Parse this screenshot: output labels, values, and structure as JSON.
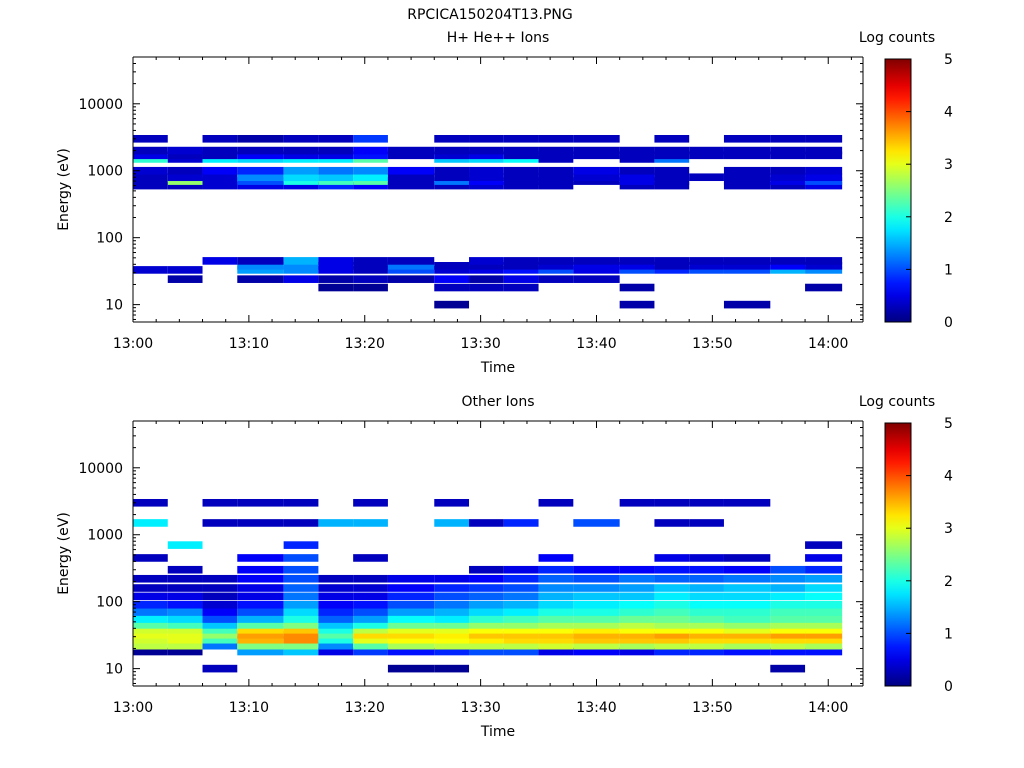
{
  "figure_title": "RPCICA150204T13.PNG",
  "chart_data": [
    {
      "type": "heatmap",
      "title": "H+ He++ Ions",
      "xlabel": "Time",
      "ylabel": "Energy (eV)",
      "x_ticks": [
        "13:00",
        "13:10",
        "13:20",
        "13:30",
        "13:40",
        "13:50",
        "14:00"
      ],
      "x_range": [
        "13:00",
        "14:03"
      ],
      "y_scale": "log",
      "y_ticks": [
        10,
        100,
        1000,
        10000
      ],
      "y_range": [
        5.5,
        50000
      ],
      "colorbar": {
        "label": "Log counts",
        "ticks": [
          0,
          1,
          2,
          3,
          4,
          5
        ],
        "range": [
          0,
          5
        ],
        "colormap": "jet"
      },
      "time_bins_start": [
        "13:00",
        "13:03",
        "13:06",
        "13:09",
        "13:13",
        "13:16",
        "13:19",
        "13:22",
        "13:26",
        "13:29",
        "13:32",
        "13:35",
        "13:38",
        "13:42",
        "13:45",
        "13:48",
        "13:51",
        "13:55",
        "13:58"
      ],
      "energy_bands_ev": [
        10,
        18,
        24,
        33,
        38,
        45,
        600,
        700,
        800,
        1000,
        1500,
        1700,
        2000,
        3000
      ],
      "values": [
        [
          null,
          null,
          null,
          0.4,
          null,
          null,
          0.3,
          0.3,
          0.3,
          0.4,
          2.1,
          0.5,
          0.3,
          0.3
        ],
        [
          null,
          null,
          0.2,
          0.4,
          null,
          null,
          0.3,
          2.6,
          0.4,
          0.3,
          0.4,
          0.3,
          0.4,
          null
        ],
        [
          null,
          null,
          null,
          null,
          null,
          0.5,
          0.4,
          0.4,
          0.4,
          0.6,
          1.8,
          0.3,
          0.3,
          0.3
        ],
        [
          null,
          null,
          0.2,
          1.4,
          1.3,
          0.3,
          0.5,
          1.0,
          1.3,
          0.8,
          1.7,
          0.6,
          0.3,
          0.2
        ],
        [
          null,
          null,
          0.5,
          1.3,
          1.3,
          1.5,
          0.5,
          2.0,
          1.7,
          1.4,
          1.8,
          0.5,
          0.3,
          0.3
        ],
        [
          null,
          0.1,
          0.2,
          0.5,
          0.5,
          0.5,
          0.8,
          2.2,
          1.6,
          1.2,
          1.8,
          0.5,
          0.3,
          0.3
        ],
        [
          null,
          0.1,
          0.3,
          0.3,
          0.3,
          0.3,
          0.6,
          2.3,
          1.8,
          1.3,
          2.3,
          0.7,
          0.6,
          0.9
        ],
        [
          null,
          null,
          0.2,
          1.0,
          1.2,
          0.3,
          0.3,
          0.3,
          0.3,
          0.6,
          null,
          0.3,
          0.3,
          null
        ],
        [
          0.1,
          0.3,
          0.6,
          0.4,
          0.3,
          null,
          0.3,
          1.2,
          0.3,
          0.3,
          1.6,
          0.4,
          0.3,
          0.3
        ],
        [
          null,
          0.3,
          0.2,
          0.5,
          0.3,
          0.4,
          0.4,
          0.6,
          0.4,
          0.4,
          1.7,
          0.5,
          0.3,
          0.3
        ],
        [
          null,
          0.3,
          0.5,
          0.7,
          0.3,
          0.3,
          0.3,
          0.3,
          0.3,
          0.3,
          1.9,
          0.3,
          0.3,
          0.3
        ],
        [
          null,
          null,
          0.3,
          1.0,
          0.4,
          0.3,
          0.3,
          0.3,
          0.3,
          0.3,
          0.3,
          0.3,
          0.3,
          0.3
        ],
        [
          null,
          null,
          0.3,
          0.5,
          0.5,
          0.3,
          null,
          0.3,
          0.4,
          0.5,
          null,
          0.3,
          0.3,
          0.3
        ],
        [
          0.2,
          0.2,
          null,
          1.0,
          0.5,
          0.3,
          0.3,
          0.5,
          0.5,
          0.3,
          0.3,
          0.3,
          0.3,
          null
        ],
        [
          null,
          null,
          null,
          0.8,
          0.3,
          0.3,
          0.3,
          0.3,
          0.3,
          0.3,
          1.2,
          0.3,
          0.3,
          0.3
        ],
        [
          null,
          null,
          null,
          1.0,
          0.4,
          0.3,
          null,
          null,
          0.3,
          null,
          null,
          0.3,
          0.3,
          null
        ],
        [
          0.2,
          null,
          null,
          1.0,
          0.4,
          0.3,
          0.3,
          0.3,
          0.3,
          0.3,
          null,
          0.3,
          0.3,
          0.3
        ],
        [
          null,
          null,
          null,
          1.5,
          0.6,
          0.3,
          0.3,
          0.5,
          0.4,
          0.3,
          null,
          0.3,
          0.3,
          0.3
        ],
        [
          null,
          0.2,
          null,
          1.3,
          0.4,
          0.3,
          0.5,
          1.0,
          0.5,
          0.4,
          null,
          0.3,
          0.3,
          0.3
        ]
      ]
    },
    {
      "type": "heatmap",
      "title": "Other Ions",
      "xlabel": "Time",
      "ylabel": "Energy (eV)",
      "x_ticks": [
        "13:00",
        "13:10",
        "13:20",
        "13:30",
        "13:40",
        "13:50",
        "14:00"
      ],
      "x_range": [
        "13:00",
        "14:03"
      ],
      "y_scale": "log",
      "y_ticks": [
        10,
        100,
        1000,
        10000
      ],
      "y_range": [
        5.5,
        50000
      ],
      "colorbar": {
        "label": "Log counts",
        "ticks": [
          0,
          1,
          2,
          3,
          4,
          5
        ],
        "range": [
          0,
          5
        ],
        "colormap": "jet"
      },
      "time_bins_start": [
        "13:00",
        "13:03",
        "13:06",
        "13:09",
        "13:13",
        "13:16",
        "13:19",
        "13:22",
        "13:26",
        "13:29",
        "13:32",
        "13:35",
        "13:38",
        "13:42",
        "13:45",
        "13:48",
        "13:51",
        "13:55",
        "13:58"
      ],
      "energy_bands_ev": [
        10,
        18,
        22,
        27,
        32,
        38,
        45,
        55,
        70,
        90,
        120,
        160,
        220,
        300,
        450,
        700,
        1500,
        3000
      ],
      "values": [
        [
          null,
          0.1,
          2.8,
          2.9,
          3.0,
          2.9,
          2.3,
          1.8,
          1.2,
          0.8,
          0.5,
          0.3,
          0.3,
          null,
          0.3,
          null,
          1.8,
          0.3
        ],
        [
          null,
          0.1,
          2.8,
          3.0,
          3.0,
          2.9,
          2.2,
          1.7,
          1.3,
          0.7,
          0.5,
          0.3,
          0.3,
          0.3,
          null,
          1.8,
          null,
          null
        ],
        [
          0.3,
          null,
          1.2,
          2.2,
          2.6,
          2.2,
          1.6,
          1.0,
          0.6,
          0.4,
          0.3,
          0.3,
          0.3,
          null,
          null,
          null,
          0.3,
          0.3
        ],
        [
          null,
          1.4,
          2.5,
          3.5,
          3.6,
          3.3,
          2.3,
          1.5,
          1.0,
          0.7,
          0.5,
          0.5,
          0.6,
          0.6,
          0.6,
          null,
          0.3,
          0.3
        ],
        [
          null,
          1.6,
          2.5,
          3.7,
          3.7,
          3.4,
          2.5,
          2.0,
          1.7,
          1.4,
          1.2,
          1.1,
          1.0,
          1.0,
          1.0,
          0.8,
          0.3,
          0.3
        ],
        [
          null,
          0.5,
          1.3,
          2.0,
          2.3,
          2.0,
          1.6,
          1.1,
          0.8,
          0.6,
          0.5,
          0.4,
          0.3,
          null,
          null,
          null,
          1.5,
          null
        ],
        [
          null,
          0.9,
          2.3,
          3.0,
          3.3,
          2.8,
          2.0,
          1.4,
          1.0,
          0.7,
          0.5,
          0.4,
          0.3,
          null,
          0.3,
          null,
          1.5,
          0.3
        ],
        [
          0.1,
          0.7,
          2.7,
          3.1,
          3.3,
          3.0,
          2.4,
          1.9,
          1.4,
          1.0,
          0.8,
          0.6,
          0.5,
          null,
          null,
          null,
          null,
          null
        ],
        [
          0.1,
          0.8,
          2.8,
          3.1,
          3.2,
          3.0,
          2.4,
          1.8,
          1.5,
          1.2,
          1.0,
          0.8,
          0.5,
          null,
          null,
          null,
          1.5,
          0.3
        ],
        [
          null,
          1.0,
          2.8,
          3.2,
          3.4,
          3.1,
          2.6,
          2.1,
          1.7,
          1.4,
          1.1,
          0.9,
          0.6,
          0.3,
          null,
          null,
          0.3,
          null
        ],
        [
          null,
          1.0,
          2.8,
          3.3,
          3.4,
          3.1,
          2.6,
          2.2,
          1.8,
          1.5,
          1.2,
          1.0,
          0.8,
          0.5,
          null,
          null,
          0.8,
          null
        ],
        [
          null,
          0.5,
          2.9,
          3.3,
          3.4,
          3.1,
          2.7,
          2.3,
          2.0,
          1.7,
          1.5,
          1.3,
          1.1,
          0.8,
          0.6,
          null,
          null,
          0.3
        ],
        [
          null,
          0.6,
          2.8,
          3.4,
          3.5,
          3.2,
          2.7,
          2.3,
          2.0,
          1.8,
          1.6,
          1.3,
          1.0,
          0.6,
          null,
          null,
          1.0,
          null
        ],
        [
          null,
          0.5,
          2.7,
          3.4,
          3.5,
          3.1,
          2.8,
          2.4,
          2.1,
          1.9,
          1.6,
          1.4,
          1.2,
          0.6,
          null,
          null,
          null,
          0.3
        ],
        [
          null,
          0.8,
          2.8,
          3.4,
          3.6,
          3.1,
          2.7,
          2.4,
          2.2,
          2.0,
          1.8,
          1.6,
          1.1,
          0.7,
          0.5,
          null,
          0.3,
          0.3
        ],
        [
          null,
          0.8,
          2.8,
          3.3,
          3.5,
          3.1,
          2.7,
          2.3,
          2.1,
          1.9,
          1.7,
          1.5,
          1.1,
          0.7,
          0.4,
          null,
          0.3,
          0.3
        ],
        [
          null,
          0.7,
          2.7,
          3.3,
          3.5,
          3.0,
          2.6,
          2.2,
          2.1,
          1.9,
          1.7,
          1.6,
          1.2,
          0.6,
          0.3,
          null,
          null,
          0.3
        ],
        [
          0.2,
          0.7,
          2.8,
          3.3,
          3.6,
          3.1,
          2.7,
          2.3,
          2.2,
          2.0,
          1.8,
          1.5,
          1.3,
          1.0,
          null,
          null,
          null,
          null
        ],
        [
          null,
          0.7,
          2.7,
          3.3,
          3.6,
          3.1,
          2.7,
          2.3,
          2.2,
          2.0,
          1.9,
          1.7,
          1.4,
          0.8,
          0.5,
          0.3,
          null,
          null
        ]
      ]
    }
  ]
}
